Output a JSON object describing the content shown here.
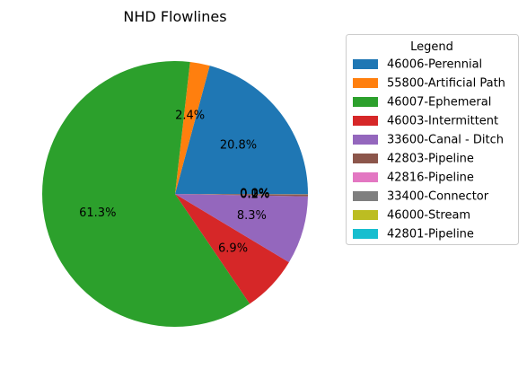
{
  "chart_data": {
    "type": "pie",
    "title": "NHD Flowlines",
    "legend_title": "Legend",
    "legend_position": "right",
    "start_angle_deg": 0,
    "direction": "counterclockwise",
    "slices": [
      {
        "label": "46006-Perennial",
        "value": 20.8,
        "pct_label": "20.8%",
        "color": "#1f77b4"
      },
      {
        "label": "55800-Artificial Path",
        "value": 2.4,
        "pct_label": "2.4%",
        "color": "#ff7f0e"
      },
      {
        "label": "46007-Ephemeral",
        "value": 61.3,
        "pct_label": "61.3%",
        "color": "#2ca02c"
      },
      {
        "label": "46003-Intermittent",
        "value": 6.9,
        "pct_label": "6.9%",
        "color": "#d62728"
      },
      {
        "label": "33600-Canal - Ditch",
        "value": 8.3,
        "pct_label": "8.3%",
        "color": "#9467bd"
      },
      {
        "label": "42803-Pipeline",
        "value": 0.2,
        "pct_label": "0.2%",
        "color": "#8c564b"
      },
      {
        "label": "42816-Pipeline",
        "value": 0.0,
        "pct_label": "0.0%",
        "color": "#e377c2"
      },
      {
        "label": "33400-Connector",
        "value": 0.1,
        "pct_label": "0.1%",
        "color": "#7f7f7f"
      },
      {
        "label": "46000-Stream",
        "value": 0.0,
        "pct_label": "0.0%",
        "color": "#bcbd22"
      },
      {
        "label": "42801-Pipeline",
        "value": 0.0,
        "pct_label": "0.0%",
        "color": "#17becf"
      }
    ]
  }
}
